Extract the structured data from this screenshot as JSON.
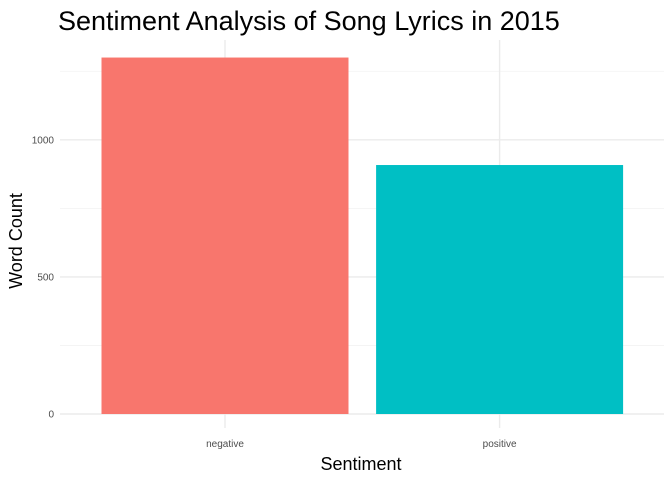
{
  "chart_data": {
    "type": "bar",
    "title": "Sentiment Analysis of Song Lyrics in 2015",
    "xlabel": "Sentiment",
    "ylabel": "Word Count",
    "categories": [
      "negative",
      "positive"
    ],
    "values": [
      1300,
      908
    ],
    "colors": [
      "#F8766D",
      "#00BFC4"
    ],
    "ylim": [
      0,
      1365
    ],
    "yticks": [
      0,
      500,
      1000
    ],
    "yminor": [
      250,
      750,
      1250
    ],
    "grid": true,
    "legend": "none"
  }
}
